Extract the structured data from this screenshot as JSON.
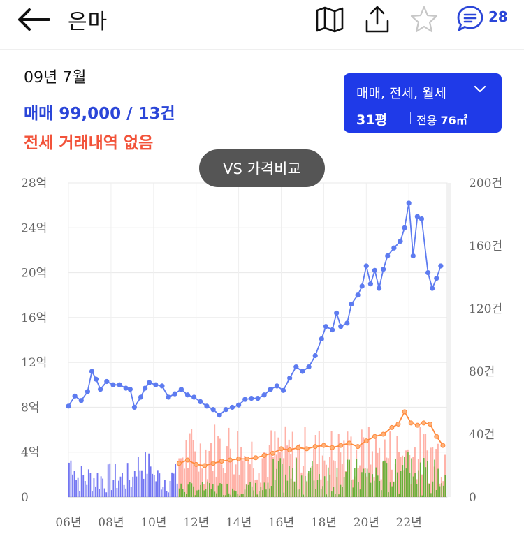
{
  "header": {
    "title": "은마",
    "comment_count": "28",
    "icons": [
      "back-arrow-icon",
      "map-icon",
      "share-icon",
      "star-icon",
      "comment-icon"
    ]
  },
  "info": {
    "period": "09년 7월",
    "sale_summary": "매매 99,000 / 13건",
    "lease_summary": "전세 거래내역 없음"
  },
  "filter": {
    "types": "매매, 전세, 월세",
    "size": "31평",
    "area_label": "전용",
    "area_value": "76㎡"
  },
  "compare_button": "VS 가격비교",
  "colors": {
    "accent": "#1f3ae8",
    "sale_text": "#2b46d8",
    "lease_text": "#f2533a",
    "sale_line": "#5d7bf0",
    "lease_line": "#ff8a3d",
    "sale_bar_pre": "#5b5ef0",
    "lease_bar": "#ff7f6e",
    "sale_bar_post": "#4fae25"
  },
  "chart_data": {
    "type": "line+bar",
    "x_tick_labels": [
      "06년",
      "08년",
      "10년",
      "12년",
      "14년",
      "16년",
      "18년",
      "20년",
      "22년"
    ],
    "x_tick_years": [
      2006,
      2008,
      2010,
      2012,
      2014,
      2016,
      2018,
      2020,
      2022
    ],
    "x_range": [
      2006.0,
      2023.8
    ],
    "y_left_ticks": [
      "0",
      "4억",
      "8억",
      "12억",
      "16억",
      "20억",
      "24억",
      "28억"
    ],
    "y_left_range": [
      0,
      28
    ],
    "y_right_ticks": [
      "0",
      "40건",
      "80건",
      "120건",
      "160건",
      "200건"
    ],
    "y_right_range": [
      0,
      200
    ],
    "grid": true,
    "series": [
      {
        "kind": "line",
        "points": [
          [
            2006.0,
            8.1
          ],
          [
            2006.3,
            9.0
          ],
          [
            2006.6,
            8.6
          ],
          [
            2006.9,
            9.4
          ],
          [
            2007.1,
            11.2
          ],
          [
            2007.3,
            10.5
          ],
          [
            2007.5,
            9.6
          ],
          [
            2007.8,
            10.3
          ],
          [
            2008.1,
            10.0
          ],
          [
            2008.4,
            10.0
          ],
          [
            2008.7,
            9.7
          ],
          [
            2008.9,
            9.6
          ],
          [
            2009.1,
            8.0
          ],
          [
            2009.4,
            8.9
          ],
          [
            2009.6,
            9.7
          ],
          [
            2009.8,
            10.2
          ],
          [
            2010.1,
            10.0
          ],
          [
            2010.4,
            9.9
          ],
          [
            2010.7,
            8.9
          ],
          [
            2011.0,
            9.2
          ],
          [
            2011.3,
            9.6
          ],
          [
            2011.6,
            9.1
          ],
          [
            2011.9,
            8.9
          ],
          [
            2012.2,
            8.5
          ],
          [
            2012.5,
            8.1
          ],
          [
            2012.8,
            7.8
          ],
          [
            2013.1,
            7.3
          ],
          [
            2013.4,
            7.8
          ],
          [
            2013.7,
            8.0
          ],
          [
            2014.0,
            8.2
          ],
          [
            2014.3,
            8.7
          ],
          [
            2014.6,
            8.8
          ],
          [
            2014.9,
            8.8
          ],
          [
            2015.2,
            9.1
          ],
          [
            2015.5,
            9.6
          ],
          [
            2015.8,
            9.9
          ],
          [
            2016.1,
            9.5
          ],
          [
            2016.4,
            10.6
          ],
          [
            2016.7,
            11.6
          ],
          [
            2017.0,
            11.2
          ],
          [
            2017.3,
            11.6
          ],
          [
            2017.6,
            12.6
          ],
          [
            2017.9,
            14.1
          ],
          [
            2018.1,
            15.2
          ],
          [
            2018.4,
            14.9
          ],
          [
            2018.6,
            16.4
          ],
          [
            2018.8,
            15.2
          ],
          [
            2019.1,
            15.5
          ],
          [
            2019.3,
            17.2
          ],
          [
            2019.6,
            18.0
          ],
          [
            2019.8,
            18.8
          ],
          [
            2020.0,
            20.6
          ],
          [
            2020.2,
            19.0
          ],
          [
            2020.4,
            20.2
          ],
          [
            2020.6,
            18.6
          ],
          [
            2020.8,
            20.3
          ],
          [
            2021.0,
            21.5
          ],
          [
            2021.3,
            22.2
          ],
          [
            2021.6,
            22.8
          ],
          [
            2021.8,
            24.0
          ],
          [
            2022.0,
            26.2
          ],
          [
            2022.2,
            21.5
          ],
          [
            2022.4,
            25.0
          ],
          [
            2022.6,
            24.8
          ],
          [
            2022.9,
            20.0
          ],
          [
            2023.1,
            18.6
          ],
          [
            2023.3,
            19.5
          ],
          [
            2023.5,
            20.6
          ]
        ]
      },
      {
        "kind": "line",
        "points": [
          [
            2011.2,
            3.0
          ],
          [
            2011.6,
            3.3
          ],
          [
            2012.0,
            2.9
          ],
          [
            2012.4,
            2.8
          ],
          [
            2012.8,
            3.0
          ],
          [
            2013.2,
            3.2
          ],
          [
            2013.6,
            3.3
          ],
          [
            2014.0,
            3.4
          ],
          [
            2014.4,
            3.4
          ],
          [
            2014.8,
            3.5
          ],
          [
            2015.2,
            3.7
          ],
          [
            2015.6,
            3.9
          ],
          [
            2016.0,
            4.3
          ],
          [
            2016.4,
            4.2
          ],
          [
            2016.8,
            4.4
          ],
          [
            2017.2,
            4.3
          ],
          [
            2017.6,
            4.5
          ],
          [
            2018.0,
            4.6
          ],
          [
            2018.4,
            4.4
          ],
          [
            2018.8,
            4.6
          ],
          [
            2019.2,
            4.8
          ],
          [
            2019.6,
            4.5
          ],
          [
            2020.0,
            5.0
          ],
          [
            2020.4,
            5.4
          ],
          [
            2020.8,
            5.6
          ],
          [
            2021.2,
            6.2
          ],
          [
            2021.5,
            6.5
          ],
          [
            2021.8,
            7.6
          ],
          [
            2022.1,
            6.6
          ],
          [
            2022.4,
            6.4
          ],
          [
            2022.7,
            6.6
          ],
          [
            2023.0,
            6.5
          ],
          [
            2023.3,
            5.4
          ],
          [
            2023.6,
            4.6
          ]
        ]
      }
    ]
  }
}
